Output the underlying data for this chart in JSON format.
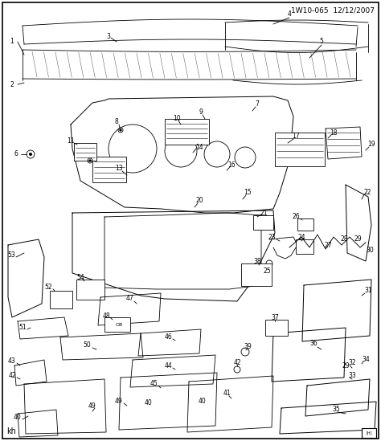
{
  "title": "1W10-065  12/12/2007",
  "footer_left": "kh",
  "bg_color": "#ffffff",
  "fig_width": 4.74,
  "fig_height": 5.49,
  "dpi": 100,
  "header_text": "1W10-065  12/12/2007"
}
